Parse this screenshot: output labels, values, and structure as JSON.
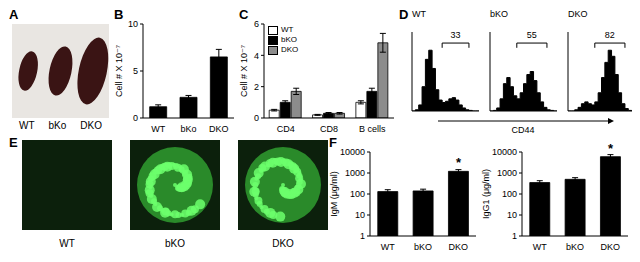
{
  "panels": [
    {
      "title": "A",
      "labels": [
        "WT",
        "bKo",
        "DKO"
      ]
    },
    {
      "title": "D"
    },
    {
      "title": "E",
      "labels": [
        "WT",
        "bKO",
        "DKO"
      ]
    }
  ],
  "chart_data": [
    {
      "type": "bar",
      "title": "B",
      "categories": [
        "WT",
        "bKo",
        "DKO"
      ],
      "values": [
        1.2,
        2.2,
        6.5
      ],
      "errors": [
        0.2,
        0.2,
        0.8
      ],
      "color": "#000000",
      "y_label": "Cell # X 10⁻⁷",
      "ylim": [
        0,
        10
      ],
      "yticks": [
        0,
        5,
        10
      ]
    },
    {
      "type": "bar",
      "title": "C",
      "categories": [
        "CD4",
        "CD8",
        "B cells"
      ],
      "series": [
        {
          "name": "WT",
          "color": "#ffffff",
          "values": [
            0.5,
            0.2,
            1.0
          ],
          "errors": [
            0.05,
            0.03,
            0.1
          ]
        },
        {
          "name": "bKO",
          "color": "#000000",
          "values": [
            1.0,
            0.3,
            1.7
          ],
          "errors": [
            0.1,
            0.05,
            0.2
          ]
        },
        {
          "name": "DKO",
          "color": "#8c8c8c",
          "values": [
            1.7,
            0.3,
            4.8
          ],
          "errors": [
            0.2,
            0.05,
            0.6
          ]
        }
      ],
      "y_label": "Cell # X 10⁻⁷",
      "ylim": [
        0,
        6
      ],
      "yticks": [
        0,
        2,
        4,
        6
      ],
      "legend": "upper left"
    },
    {
      "type": "histogram",
      "title": "WT",
      "bins": [
        0,
        1,
        2,
        3,
        4,
        5,
        6,
        7,
        8,
        9,
        10,
        11,
        12,
        13,
        14,
        15,
        16,
        17,
        18,
        19,
        20
      ],
      "counts": [
        0,
        2,
        10,
        40,
        85,
        100,
        70,
        35,
        18,
        14,
        16,
        20,
        22,
        18,
        10,
        5,
        2,
        1,
        0,
        0
      ],
      "color": "#000000",
      "xlim": [
        0,
        20
      ],
      "ylim": [
        0,
        130
      ],
      "tick_labels": false,
      "gate": {
        "range": [
          9,
          17
        ],
        "percent": 33
      }
    },
    {
      "type": "histogram",
      "title": "bKO",
      "bins": [
        0,
        1,
        2,
        3,
        4,
        5,
        6,
        7,
        8,
        9,
        10,
        11,
        12,
        13,
        14,
        15,
        16,
        17,
        18,
        19,
        20
      ],
      "counts": [
        0,
        1,
        5,
        20,
        45,
        55,
        40,
        25,
        20,
        30,
        45,
        60,
        65,
        50,
        30,
        15,
        6,
        2,
        1,
        0
      ],
      "color": "#000000",
      "xlim": [
        0,
        20
      ],
      "ylim": [
        0,
        130
      ],
      "tick_labels": false,
      "x_label": "CD44",
      "gate": {
        "range": [
          8,
          17
        ],
        "percent": 55
      }
    },
    {
      "type": "histogram",
      "title": "DKO",
      "bins": [
        0,
        1,
        2,
        3,
        4,
        5,
        6,
        7,
        8,
        9,
        10,
        11,
        12,
        13,
        14,
        15,
        16,
        17,
        18,
        19,
        20
      ],
      "counts": [
        0,
        0,
        2,
        6,
        12,
        15,
        12,
        10,
        15,
        30,
        55,
        80,
        100,
        90,
        60,
        30,
        12,
        4,
        1,
        0
      ],
      "color": "#000000",
      "xlim": [
        0,
        20
      ],
      "ylim": [
        0,
        130
      ],
      "tick_labels": false,
      "gate": {
        "range": [
          8,
          17
        ],
        "percent": 82
      }
    },
    {
      "type": "bar",
      "title": "F",
      "categories": [
        "WT",
        "bKO",
        "DKO"
      ],
      "values": [
        130,
        140,
        1200
      ],
      "errors": [
        30,
        30,
        250
      ],
      "color": "#000000",
      "y_label": "IgM (μg/ml)",
      "log": "y",
      "ylim": [
        1,
        10000
      ],
      "yticks": [
        1,
        10,
        100,
        1000,
        10000
      ],
      "annotations": [
        {
          "text": "*",
          "category": "DKO"
        }
      ]
    },
    {
      "type": "bar",
      "categories": [
        "WT",
        "bKO",
        "DKO"
      ],
      "values": [
        350,
        500,
        6000
      ],
      "errors": [
        80,
        100,
        1500
      ],
      "color": "#000000",
      "y_label": "IgG1 (μg/ml)",
      "log": "y",
      "ylim": [
        1,
        10000
      ],
      "yticks": [
        1,
        10,
        100,
        1000,
        10000
      ],
      "annotations": [
        {
          "text": "*",
          "category": "DKO"
        }
      ]
    }
  ]
}
